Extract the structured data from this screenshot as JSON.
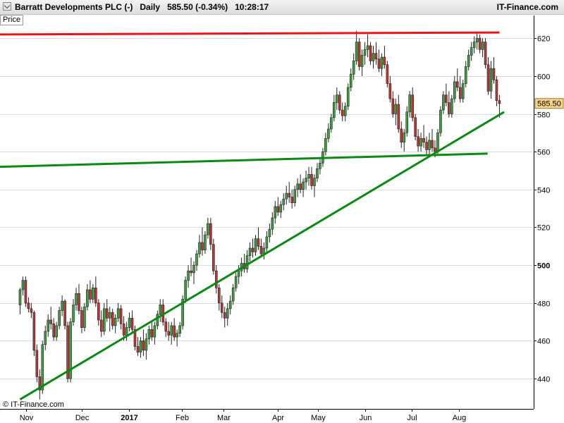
{
  "header": {
    "instrument": "Barratt Developments PLC (-)",
    "period": "Daily",
    "price_change": "585.50 (-0.34%)",
    "time": "10:28:17",
    "brand": "IT-Finance.com"
  },
  "price_tab": "Price",
  "credit": "© IT-Finance.com",
  "last_price_label": "585.50",
  "colors": {
    "resistance": "#e8161b",
    "support": "#0a8a12",
    "candle_up": "#3d9e3d",
    "candle_down": "#c03434",
    "last_price_box": "#f6d28a"
  },
  "chart_data": {
    "type": "candlestick",
    "ylim": [
      424,
      632
    ],
    "y_ticks": [
      440,
      460,
      480,
      500,
      520,
      540,
      560,
      580,
      600,
      620
    ],
    "y_tick_bold": [
      500
    ],
    "x_labels": [
      {
        "label": "Nov",
        "day": 7,
        "bold": false
      },
      {
        "label": "Dec",
        "day": 54,
        "bold": false
      },
      {
        "label": "2017",
        "day": 94,
        "bold": true
      },
      {
        "label": "Feb",
        "day": 139,
        "bold": false
      },
      {
        "label": "Mar",
        "day": 174,
        "bold": false
      },
      {
        "label": "Apr",
        "day": 220,
        "bold": false
      },
      {
        "label": "May",
        "day": 254,
        "bold": false
      },
      {
        "label": "Jun",
        "day": 294,
        "bold": false
      },
      {
        "label": "Jul",
        "day": 334,
        "bold": false
      },
      {
        "label": "Aug",
        "day": 374,
        "bold": false
      }
    ],
    "x_range": [
      -15,
      437
    ],
    "last_price": 585.5,
    "lines": [
      {
        "name": "resistance",
        "from": {
          "day": -15,
          "value": 622
        },
        "to": {
          "day": 408,
          "value": 623
        }
      },
      {
        "name": "horizontal-support",
        "from": {
          "day": -15,
          "value": 552
        },
        "to": {
          "day": 398,
          "value": 559
        }
      },
      {
        "name": "rising-trendline",
        "from": {
          "day": 2,
          "value": 429
        },
        "to": {
          "day": 412,
          "value": 581
        }
      }
    ],
    "candles": [
      {
        "o": 479,
        "h": 488,
        "l": 474,
        "c": 487
      },
      {
        "o": 487,
        "h": 494,
        "l": 484,
        "c": 492
      },
      {
        "o": 492,
        "h": 494,
        "l": 478,
        "c": 480
      },
      {
        "o": 480,
        "h": 483,
        "l": 475,
        "c": 477
      },
      {
        "o": 477,
        "h": 480,
        "l": 472,
        "c": 475
      },
      {
        "o": 475,
        "h": 476,
        "l": 452,
        "c": 455
      },
      {
        "o": 455,
        "h": 458,
        "l": 438,
        "c": 441
      },
      {
        "o": 441,
        "h": 445,
        "l": 429,
        "c": 434
      },
      {
        "o": 434,
        "h": 460,
        "l": 432,
        "c": 458
      },
      {
        "o": 458,
        "h": 468,
        "l": 455,
        "c": 465
      },
      {
        "o": 465,
        "h": 474,
        "l": 462,
        "c": 471
      },
      {
        "o": 471,
        "h": 478,
        "l": 466,
        "c": 469
      },
      {
        "o": 469,
        "h": 472,
        "l": 460,
        "c": 462
      },
      {
        "o": 462,
        "h": 470,
        "l": 460,
        "c": 468
      },
      {
        "o": 468,
        "h": 478,
        "l": 466,
        "c": 476
      },
      {
        "o": 476,
        "h": 484,
        "l": 473,
        "c": 481
      },
      {
        "o": 481,
        "h": 482,
        "l": 466,
        "c": 468
      },
      {
        "o": 468,
        "h": 470,
        "l": 438,
        "c": 440
      },
      {
        "o": 440,
        "h": 472,
        "l": 438,
        "c": 470
      },
      {
        "o": 470,
        "h": 482,
        "l": 468,
        "c": 479
      },
      {
        "o": 479,
        "h": 488,
        "l": 476,
        "c": 485
      },
      {
        "o": 485,
        "h": 490,
        "l": 474,
        "c": 476
      },
      {
        "o": 476,
        "h": 478,
        "l": 464,
        "c": 467
      },
      {
        "o": 467,
        "h": 480,
        "l": 465,
        "c": 478
      },
      {
        "o": 478,
        "h": 490,
        "l": 476,
        "c": 487
      },
      {
        "o": 487,
        "h": 492,
        "l": 480,
        "c": 482
      },
      {
        "o": 482,
        "h": 490,
        "l": 480,
        "c": 488
      },
      {
        "o": 488,
        "h": 494,
        "l": 478,
        "c": 480
      },
      {
        "o": 480,
        "h": 482,
        "l": 468,
        "c": 471
      },
      {
        "o": 471,
        "h": 476,
        "l": 462,
        "c": 465
      },
      {
        "o": 465,
        "h": 480,
        "l": 463,
        "c": 477
      },
      {
        "o": 477,
        "h": 482,
        "l": 470,
        "c": 472
      },
      {
        "o": 472,
        "h": 478,
        "l": 465,
        "c": 475
      },
      {
        "o": 475,
        "h": 477,
        "l": 466,
        "c": 468
      },
      {
        "o": 468,
        "h": 474,
        "l": 464,
        "c": 472
      },
      {
        "o": 472,
        "h": 480,
        "l": 470,
        "c": 477
      },
      {
        "o": 477,
        "h": 479,
        "l": 466,
        "c": 469
      },
      {
        "o": 469,
        "h": 473,
        "l": 460,
        "c": 463
      },
      {
        "o": 463,
        "h": 470,
        "l": 460,
        "c": 467
      },
      {
        "o": 467,
        "h": 475,
        "l": 465,
        "c": 472
      },
      {
        "o": 472,
        "h": 476,
        "l": 464,
        "c": 466
      },
      {
        "o": 466,
        "h": 468,
        "l": 455,
        "c": 457
      },
      {
        "o": 457,
        "h": 462,
        "l": 452,
        "c": 454
      },
      {
        "o": 454,
        "h": 462,
        "l": 451,
        "c": 460
      },
      {
        "o": 460,
        "h": 466,
        "l": 452,
        "c": 455
      },
      {
        "o": 455,
        "h": 464,
        "l": 450,
        "c": 461
      },
      {
        "o": 461,
        "h": 468,
        "l": 458,
        "c": 466
      },
      {
        "o": 466,
        "h": 470,
        "l": 460,
        "c": 462
      },
      {
        "o": 462,
        "h": 470,
        "l": 458,
        "c": 468
      },
      {
        "o": 468,
        "h": 476,
        "l": 466,
        "c": 474
      },
      {
        "o": 474,
        "h": 482,
        "l": 470,
        "c": 479
      },
      {
        "o": 479,
        "h": 482,
        "l": 468,
        "c": 470
      },
      {
        "o": 470,
        "h": 472,
        "l": 462,
        "c": 465
      },
      {
        "o": 465,
        "h": 470,
        "l": 460,
        "c": 463
      },
      {
        "o": 463,
        "h": 470,
        "l": 458,
        "c": 468
      },
      {
        "o": 468,
        "h": 472,
        "l": 460,
        "c": 462
      },
      {
        "o": 462,
        "h": 466,
        "l": 457,
        "c": 464
      },
      {
        "o": 464,
        "h": 470,
        "l": 462,
        "c": 468
      },
      {
        "o": 468,
        "h": 484,
        "l": 466,
        "c": 482
      },
      {
        "o": 482,
        "h": 494,
        "l": 480,
        "c": 492
      },
      {
        "o": 492,
        "h": 500,
        "l": 488,
        "c": 497
      },
      {
        "o": 497,
        "h": 504,
        "l": 494,
        "c": 496
      },
      {
        "o": 496,
        "h": 502,
        "l": 490,
        "c": 500
      },
      {
        "o": 500,
        "h": 508,
        "l": 497,
        "c": 506
      },
      {
        "o": 506,
        "h": 516,
        "l": 504,
        "c": 512
      },
      {
        "o": 512,
        "h": 520,
        "l": 505,
        "c": 508
      },
      {
        "o": 508,
        "h": 518,
        "l": 506,
        "c": 516
      },
      {
        "o": 516,
        "h": 525,
        "l": 514,
        "c": 522
      },
      {
        "o": 522,
        "h": 525,
        "l": 508,
        "c": 511
      },
      {
        "o": 511,
        "h": 514,
        "l": 495,
        "c": 497
      },
      {
        "o": 497,
        "h": 500,
        "l": 485,
        "c": 488
      },
      {
        "o": 488,
        "h": 490,
        "l": 476,
        "c": 480
      },
      {
        "o": 480,
        "h": 484,
        "l": 472,
        "c": 475
      },
      {
        "o": 475,
        "h": 478,
        "l": 467,
        "c": 472
      },
      {
        "o": 472,
        "h": 480,
        "l": 468,
        "c": 477
      },
      {
        "o": 477,
        "h": 484,
        "l": 474,
        "c": 481
      },
      {
        "o": 481,
        "h": 490,
        "l": 479,
        "c": 488
      },
      {
        "o": 488,
        "h": 496,
        "l": 486,
        "c": 494
      },
      {
        "o": 494,
        "h": 500,
        "l": 490,
        "c": 497
      },
      {
        "o": 497,
        "h": 504,
        "l": 494,
        "c": 501
      },
      {
        "o": 501,
        "h": 506,
        "l": 496,
        "c": 498
      },
      {
        "o": 498,
        "h": 508,
        "l": 496,
        "c": 505
      },
      {
        "o": 505,
        "h": 512,
        "l": 502,
        "c": 509
      },
      {
        "o": 509,
        "h": 514,
        "l": 504,
        "c": 507
      },
      {
        "o": 507,
        "h": 516,
        "l": 505,
        "c": 514
      },
      {
        "o": 514,
        "h": 520,
        "l": 508,
        "c": 510
      },
      {
        "o": 510,
        "h": 514,
        "l": 504,
        "c": 506
      },
      {
        "o": 506,
        "h": 512,
        "l": 503,
        "c": 509
      },
      {
        "o": 509,
        "h": 518,
        "l": 507,
        "c": 515
      },
      {
        "o": 515,
        "h": 522,
        "l": 512,
        "c": 519
      },
      {
        "o": 519,
        "h": 528,
        "l": 516,
        "c": 525
      },
      {
        "o": 525,
        "h": 534,
        "l": 522,
        "c": 531
      },
      {
        "o": 531,
        "h": 536,
        "l": 526,
        "c": 528
      },
      {
        "o": 528,
        "h": 534,
        "l": 525,
        "c": 532
      },
      {
        "o": 532,
        "h": 538,
        "l": 529,
        "c": 535
      },
      {
        "o": 535,
        "h": 542,
        "l": 532,
        "c": 538
      },
      {
        "o": 538,
        "h": 544,
        "l": 533,
        "c": 536
      },
      {
        "o": 536,
        "h": 540,
        "l": 530,
        "c": 533
      },
      {
        "o": 533,
        "h": 542,
        "l": 531,
        "c": 540
      },
      {
        "o": 540,
        "h": 546,
        "l": 536,
        "c": 543
      },
      {
        "o": 543,
        "h": 548,
        "l": 538,
        "c": 540
      },
      {
        "o": 540,
        "h": 546,
        "l": 536,
        "c": 544
      },
      {
        "o": 544,
        "h": 550,
        "l": 540,
        "c": 546
      },
      {
        "o": 546,
        "h": 552,
        "l": 542,
        "c": 548
      },
      {
        "o": 548,
        "h": 552,
        "l": 540,
        "c": 542
      },
      {
        "o": 542,
        "h": 548,
        "l": 536,
        "c": 546
      },
      {
        "o": 546,
        "h": 554,
        "l": 544,
        "c": 551
      },
      {
        "o": 551,
        "h": 556,
        "l": 548,
        "c": 554
      },
      {
        "o": 554,
        "h": 562,
        "l": 552,
        "c": 560
      },
      {
        "o": 560,
        "h": 570,
        "l": 558,
        "c": 567
      },
      {
        "o": 567,
        "h": 575,
        "l": 565,
        "c": 572
      },
      {
        "o": 572,
        "h": 580,
        "l": 570,
        "c": 578
      },
      {
        "o": 578,
        "h": 590,
        "l": 576,
        "c": 586
      },
      {
        "o": 586,
        "h": 594,
        "l": 582,
        "c": 590
      },
      {
        "o": 590,
        "h": 592,
        "l": 580,
        "c": 582
      },
      {
        "o": 582,
        "h": 586,
        "l": 576,
        "c": 579
      },
      {
        "o": 579,
        "h": 586,
        "l": 576,
        "c": 584
      },
      {
        "o": 584,
        "h": 596,
        "l": 582,
        "c": 594
      },
      {
        "o": 594,
        "h": 604,
        "l": 592,
        "c": 601
      },
      {
        "o": 601,
        "h": 612,
        "l": 598,
        "c": 608
      },
      {
        "o": 608,
        "h": 624,
        "l": 606,
        "c": 618
      },
      {
        "o": 618,
        "h": 620,
        "l": 603,
        "c": 605
      },
      {
        "o": 605,
        "h": 614,
        "l": 600,
        "c": 611
      },
      {
        "o": 611,
        "h": 618,
        "l": 606,
        "c": 614
      },
      {
        "o": 614,
        "h": 622,
        "l": 610,
        "c": 616
      },
      {
        "o": 616,
        "h": 618,
        "l": 606,
        "c": 608
      },
      {
        "o": 608,
        "h": 616,
        "l": 604,
        "c": 612
      },
      {
        "o": 612,
        "h": 618,
        "l": 606,
        "c": 609
      },
      {
        "o": 609,
        "h": 614,
        "l": 602,
        "c": 604
      },
      {
        "o": 604,
        "h": 612,
        "l": 600,
        "c": 610
      },
      {
        "o": 610,
        "h": 616,
        "l": 604,
        "c": 606
      },
      {
        "o": 606,
        "h": 608,
        "l": 594,
        "c": 596
      },
      {
        "o": 596,
        "h": 600,
        "l": 586,
        "c": 588
      },
      {
        "o": 588,
        "h": 592,
        "l": 578,
        "c": 580
      },
      {
        "o": 580,
        "h": 588,
        "l": 574,
        "c": 585
      },
      {
        "o": 585,
        "h": 590,
        "l": 570,
        "c": 572
      },
      {
        "o": 572,
        "h": 576,
        "l": 562,
        "c": 565
      },
      {
        "o": 565,
        "h": 572,
        "l": 560,
        "c": 570
      },
      {
        "o": 570,
        "h": 584,
        "l": 568,
        "c": 581
      },
      {
        "o": 581,
        "h": 592,
        "l": 578,
        "c": 590
      },
      {
        "o": 590,
        "h": 594,
        "l": 576,
        "c": 578
      },
      {
        "o": 578,
        "h": 580,
        "l": 566,
        "c": 568
      },
      {
        "o": 568,
        "h": 572,
        "l": 560,
        "c": 563
      },
      {
        "o": 563,
        "h": 570,
        "l": 560,
        "c": 567
      },
      {
        "o": 567,
        "h": 574,
        "l": 562,
        "c": 565
      },
      {
        "o": 565,
        "h": 568,
        "l": 558,
        "c": 561
      },
      {
        "o": 561,
        "h": 570,
        "l": 558,
        "c": 566
      },
      {
        "o": 566,
        "h": 572,
        "l": 560,
        "c": 562
      },
      {
        "o": 562,
        "h": 566,
        "l": 557,
        "c": 560
      },
      {
        "o": 560,
        "h": 572,
        "l": 558,
        "c": 570
      },
      {
        "o": 570,
        "h": 584,
        "l": 568,
        "c": 582
      },
      {
        "o": 582,
        "h": 592,
        "l": 580,
        "c": 590
      },
      {
        "o": 590,
        "h": 596,
        "l": 584,
        "c": 586
      },
      {
        "o": 586,
        "h": 592,
        "l": 578,
        "c": 580
      },
      {
        "o": 580,
        "h": 590,
        "l": 578,
        "c": 588
      },
      {
        "o": 588,
        "h": 600,
        "l": 586,
        "c": 597
      },
      {
        "o": 597,
        "h": 604,
        "l": 592,
        "c": 594
      },
      {
        "o": 594,
        "h": 600,
        "l": 586,
        "c": 588
      },
      {
        "o": 588,
        "h": 598,
        "l": 586,
        "c": 596
      },
      {
        "o": 596,
        "h": 608,
        "l": 594,
        "c": 605
      },
      {
        "o": 605,
        "h": 614,
        "l": 603,
        "c": 611
      },
      {
        "o": 611,
        "h": 618,
        "l": 608,
        "c": 615
      },
      {
        "o": 615,
        "h": 621,
        "l": 612,
        "c": 618
      },
      {
        "o": 618,
        "h": 623,
        "l": 614,
        "c": 620
      },
      {
        "o": 620,
        "h": 622,
        "l": 612,
        "c": 614
      },
      {
        "o": 614,
        "h": 620,
        "l": 610,
        "c": 618
      },
      {
        "o": 618,
        "h": 620,
        "l": 604,
        "c": 606
      },
      {
        "o": 606,
        "h": 610,
        "l": 590,
        "c": 592
      },
      {
        "o": 592,
        "h": 608,
        "l": 588,
        "c": 604
      },
      {
        "o": 604,
        "h": 610,
        "l": 596,
        "c": 598
      },
      {
        "o": 598,
        "h": 600,
        "l": 584,
        "c": 587
      },
      {
        "o": 587,
        "h": 590,
        "l": 578,
        "c": 585.5
      }
    ]
  }
}
